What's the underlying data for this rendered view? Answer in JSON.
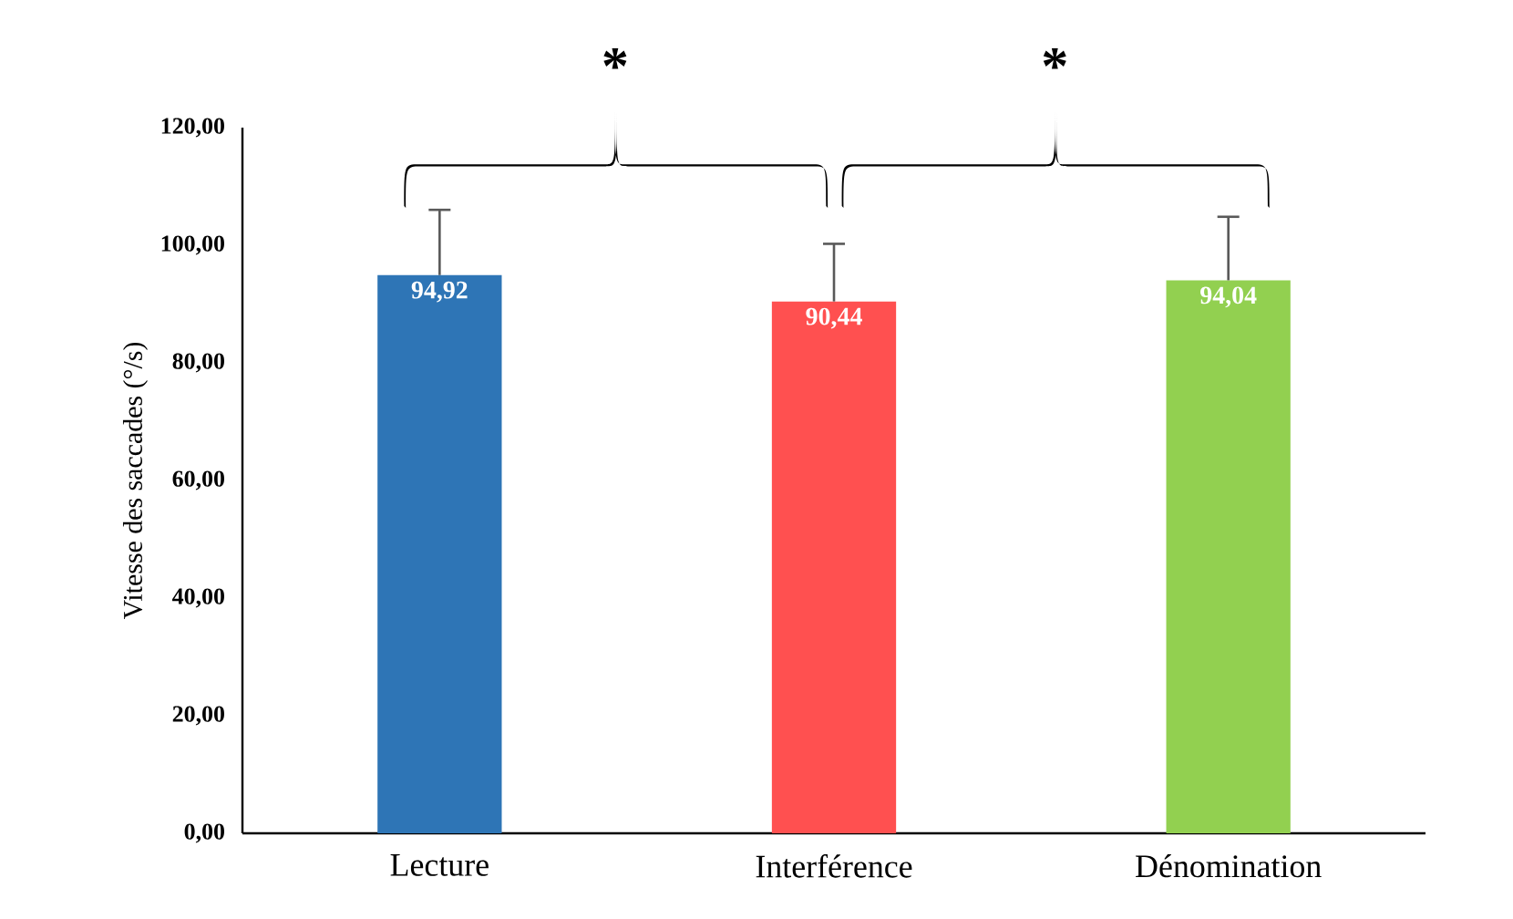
{
  "chart_data": {
    "type": "bar",
    "ylabel": "Vitesse des saccades (°/s)",
    "categories": [
      "Lecture",
      "Interférence",
      "Dénomination"
    ],
    "values": [
      94.92,
      90.44,
      94.04
    ],
    "colors": [
      "#2e75b6",
      "#ff5050",
      "#92d050"
    ],
    "errors": [
      11.1,
      9.8,
      10.8
    ],
    "value_labels": [
      "94,92",
      "90,44",
      "94,04"
    ],
    "ylim": [
      0,
      120
    ],
    "yticks": [
      {
        "value": 0,
        "label": "0,00"
      },
      {
        "value": 20,
        "label": "20,00"
      },
      {
        "value": 40,
        "label": "40,00"
      },
      {
        "value": 60,
        "label": "60,00"
      },
      {
        "value": 80,
        "label": "80,00"
      },
      {
        "value": 100,
        "label": "100,00"
      },
      {
        "value": 120,
        "label": "120,00"
      }
    ],
    "annotations": [
      "*",
      "*"
    ]
  }
}
